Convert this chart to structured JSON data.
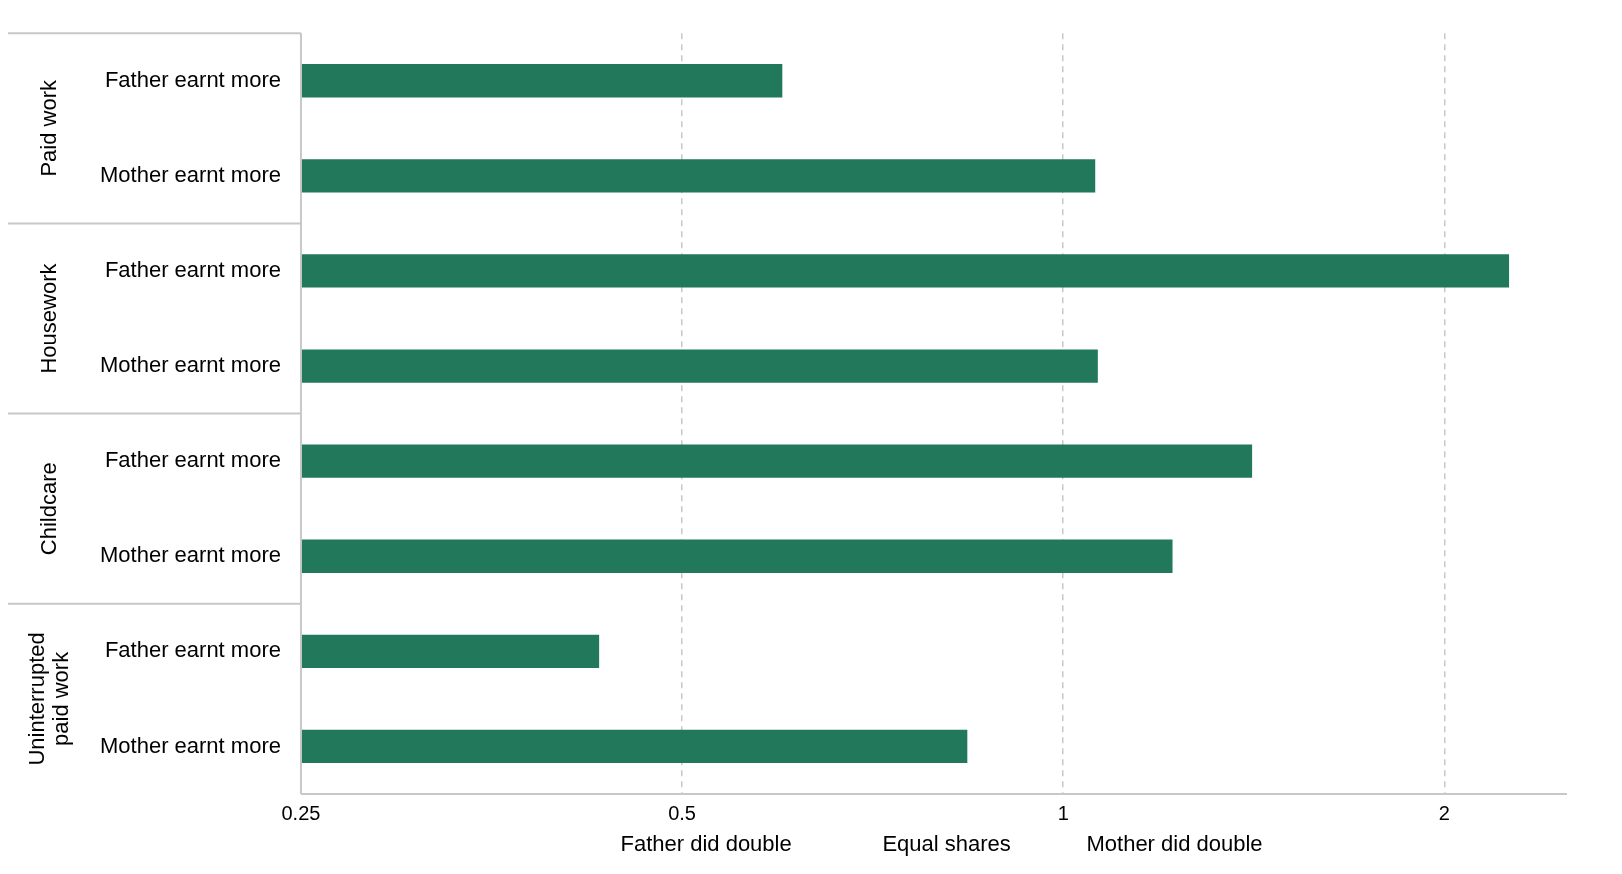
{
  "chart_data": {
    "type": "bar",
    "orientation": "horizontal",
    "categories": [
      "Father earnt more",
      "Mother earnt more",
      "Father earnt more",
      "Mother earnt more",
      "Father earnt more",
      "Mother earnt more",
      "Father earnt more",
      "Mother earnt more"
    ],
    "values": [
      0.6,
      1.06,
      2.25,
      1.065,
      1.41,
      1.22,
      0.43,
      0.84
    ],
    "color": "#22785a",
    "log": "x",
    "xlim": [
      0.25,
      2.5
    ],
    "xticks": [
      0.25,
      0.5,
      1,
      2
    ],
    "grid": "x",
    "legend": false,
    "annotations": [
      "Paid work",
      "Housework",
      "Childcare",
      "Uninterrupted paid work",
      "Father did double",
      "Equal shares",
      "Mother did double"
    ]
  }
}
